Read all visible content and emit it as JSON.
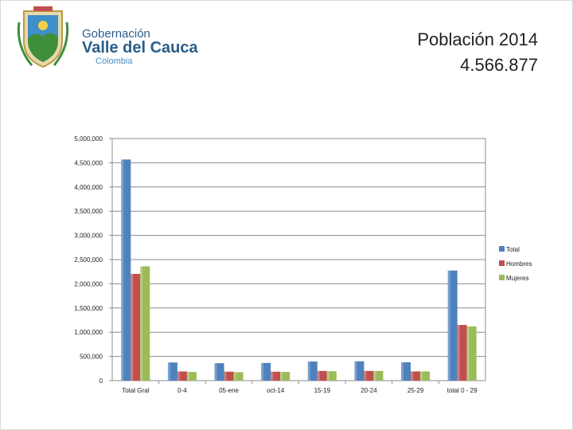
{
  "header": {
    "logo": {
      "line1": "Gobernación",
      "line2": "Valle del Cauca",
      "line3": "Colombia"
    },
    "title_line1": "Población 2014",
    "title_line2": "4.566.877"
  },
  "colors": {
    "Total": "#4f81bd",
    "Hombres": "#c0504d",
    "Mujeres": "#9bbb59",
    "logo_blue": "#2a5d8a",
    "logo_green": "#3f8f3a"
  },
  "chart_data": {
    "type": "bar",
    "categories": [
      "Total Gral",
      "0-4",
      "05-ene",
      "oct-14",
      "15-19",
      "20-24",
      "25-29",
      "total 0 - 29"
    ],
    "series": [
      {
        "name": "Total",
        "values": [
          4566877,
          375000,
          360000,
          365000,
          395000,
          400000,
          380000,
          2275000
        ]
      },
      {
        "name": "Hombres",
        "values": [
          2205000,
          190000,
          185000,
          185000,
          200000,
          200000,
          190000,
          1150000
        ]
      },
      {
        "name": "Mujeres",
        "values": [
          2360000,
          180000,
          175000,
          180000,
          195000,
          200000,
          190000,
          1120000
        ]
      }
    ],
    "ylim": [
      0,
      5000000
    ],
    "yticks": [
      {
        "value": 0,
        "label": "0"
      },
      {
        "value": 500000,
        "label": "500,000"
      },
      {
        "value": 1000000,
        "label": "1,000,000"
      },
      {
        "value": 1500000,
        "label": "1,500,000"
      },
      {
        "value": 2000000,
        "label": "2,000,000"
      },
      {
        "value": 2500000,
        "label": "2,500,000"
      },
      {
        "value": 3000000,
        "label": "3,000,000"
      },
      {
        "value": 3500000,
        "label": "3,500,000"
      },
      {
        "value": 4000000,
        "label": "4,000,000"
      },
      {
        "value": 4500000,
        "label": "4,500,000"
      },
      {
        "value": 5000000,
        "label": "5,000,000"
      }
    ],
    "grid": true,
    "legend": "right"
  }
}
